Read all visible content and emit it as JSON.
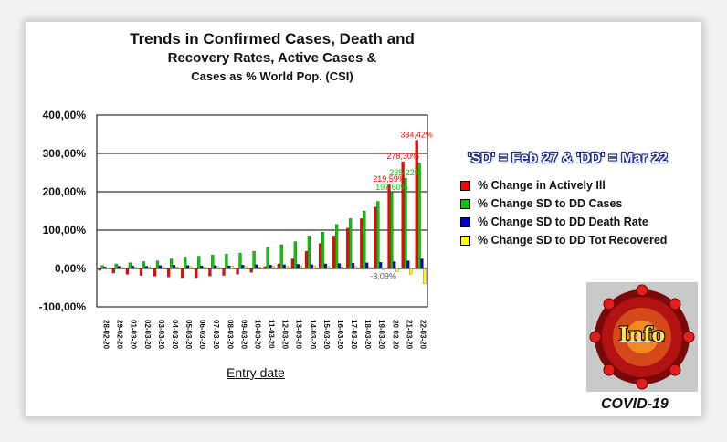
{
  "title_lines": [
    "Trends in Confirmed Cases, Death and",
    "Recovery Rates, Active Cases &",
    "Cases as % World Pop. (CSI)"
  ],
  "annotation": "'SD' = Feb 27 & 'DD' = Mar 22",
  "badge": {
    "text": "Info",
    "caption": "COVID-19",
    "icon": "virus-icon"
  },
  "colors": {
    "actively_ill": "#ff0000",
    "cases": "#00cc00",
    "death_rate": "#0000cc",
    "recovered": "#ffff00"
  },
  "chart_data": {
    "type": "bar",
    "title": "Trends in Confirmed Cases, Death and Recovery Rates, Active Cases & Cases as % World Pop. (CSI)",
    "xlabel": "Entry date",
    "ylabel": "",
    "ylim": [
      -100,
      400
    ],
    "yticks": [
      "400,00%",
      "300,00%",
      "200,00%",
      "100,00%",
      "0,00%",
      "-100,00%"
    ],
    "ytick_values": [
      400,
      300,
      200,
      100,
      0,
      -100
    ],
    "grid": true,
    "legend_position": "right",
    "categories": [
      "28-02-20",
      "29-02-20",
      "01-03-20",
      "02-03-20",
      "03-03-20",
      "04-03-20",
      "05-03-20",
      "06-03-20",
      "07-03-20",
      "08-03-20",
      "09-03-20",
      "10-03-20",
      "11-03-20",
      "12-03-20",
      "13-03-20",
      "14-03-20",
      "15-03-20",
      "16-03-20",
      "17-03-20",
      "18-03-20",
      "19-03-20",
      "20-03-20",
      "21-03-20",
      "22-03-20"
    ],
    "series": [
      {
        "name": "% Change in Actively Ill",
        "color": "#ff0000",
        "values": [
          -5,
          -12,
          -15,
          -18,
          -20,
          -22,
          -24,
          -24,
          -20,
          -18,
          -15,
          -10,
          5,
          12,
          25,
          45,
          65,
          85,
          105,
          130,
          160,
          219.59,
          278.3,
          334.42
        ],
        "labels": {
          "21": "219,59%",
          "22": "278,30%",
          "23": "334,42%"
        }
      },
      {
        "name": "% Change SD to DD Cases",
        "color": "#00cc00",
        "values": [
          8,
          12,
          15,
          18,
          20,
          25,
          30,
          32,
          35,
          38,
          40,
          45,
          55,
          62,
          70,
          85,
          95,
          115,
          130,
          150,
          175,
          197.6,
          235.22,
          275
        ],
        "labels": {
          "21": "197,60%",
          "22": "235,22%"
        }
      },
      {
        "name": "% Change SD to DD Death Rate",
        "color": "#0000cc",
        "values": [
          4,
          6,
          7,
          6,
          8,
          9,
          8,
          7,
          8,
          7,
          9,
          10,
          9,
          10,
          11,
          10,
          12,
          13,
          14,
          15,
          16,
          18,
          20,
          25
        ],
        "labels": {}
      },
      {
        "name": "% Change SD to DD Tot Recovered",
        "color": "#ffff00",
        "values": [
          2,
          3,
          3,
          4,
          3,
          4,
          5,
          4,
          5,
          6,
          5,
          4,
          6,
          5,
          7,
          6,
          5,
          4,
          5,
          3,
          -3,
          -8,
          -15,
          -40
        ],
        "labels": {
          "20": "-3,09%"
        }
      }
    ]
  }
}
